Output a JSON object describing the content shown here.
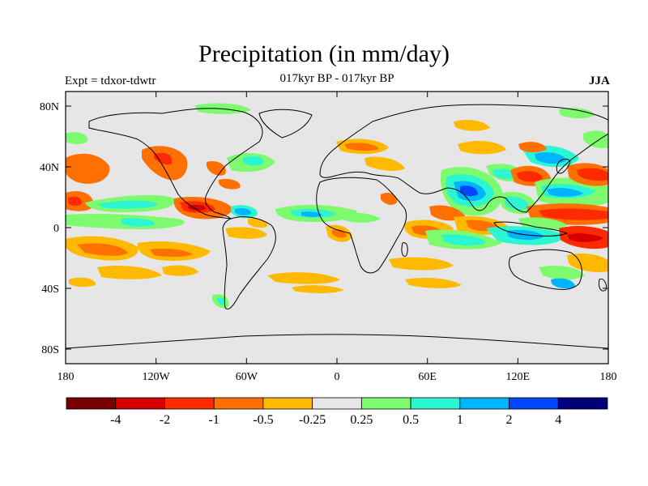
{
  "header": {
    "title": "Precipitation (in mm/day)",
    "subtitle": "017kyr BP - 017kyr BP",
    "left_label": "Expt = tdxor-tdwtr",
    "right_label": "JJA"
  },
  "map": {
    "lat_ticks": [
      "80N",
      "40N",
      "0",
      "40S",
      "80S"
    ],
    "lon_ticks": [
      "180",
      "120W",
      "60W",
      "0",
      "60E",
      "120E",
      "180"
    ],
    "background_color": "#e6e6e6"
  },
  "colorbar": {
    "labels": [
      "-4",
      "-2",
      "-1",
      "-0.5",
      "-0.25",
      "0.25",
      "0.5",
      "1",
      "2",
      "4"
    ],
    "colors": [
      "#780000",
      "#d40000",
      "#ff2a00",
      "#ff7000",
      "#ffb900",
      "#e6e6e6",
      "#7dfa6e",
      "#2cf5d2",
      "#00b4ff",
      "#0046ff",
      "#000078"
    ]
  }
}
